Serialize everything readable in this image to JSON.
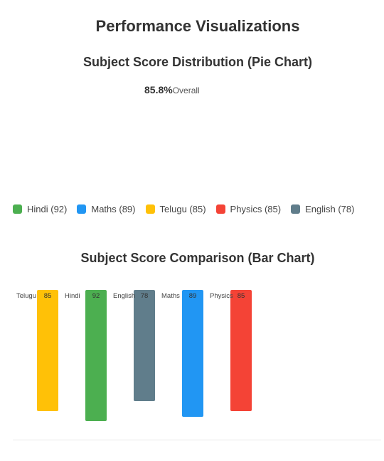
{
  "page": {
    "title": "Performance Visualizations"
  },
  "pie": {
    "title": "Subject Score Distribution (Pie Chart)",
    "overall_value": "85.8%",
    "overall_label": "Overall",
    "legend": [
      {
        "label": "Hindi (92)",
        "color": "#4CAF50"
      },
      {
        "label": "Maths (89)",
        "color": "#2196F3"
      },
      {
        "label": "Telugu (85)",
        "color": "#FFC107"
      },
      {
        "label": "Physics (85)",
        "color": "#F44336"
      },
      {
        "label": "English (78)",
        "color": "#607D8B"
      }
    ]
  },
  "bar": {
    "title": "Subject Score Comparison (Bar Chart)"
  },
  "chart_data": [
    {
      "type": "pie",
      "title": "Subject Score Distribution (Pie Chart)",
      "center_label": "85.8%",
      "center_sublabel": "Overall",
      "categories": [
        "Hindi",
        "Maths",
        "Telugu",
        "Physics",
        "English"
      ],
      "values": [
        92,
        89,
        85,
        85,
        78
      ],
      "colors": [
        "#4CAF50",
        "#2196F3",
        "#FFC107",
        "#F44336",
        "#607D8B"
      ],
      "legend_position": "bottom"
    },
    {
      "type": "bar",
      "title": "Subject Score Comparison (Bar Chart)",
      "categories": [
        "Telugu",
        "Hindi",
        "English",
        "Maths",
        "Physics"
      ],
      "values": [
        85,
        92,
        78,
        89,
        85
      ],
      "colors": [
        "#FFC107",
        "#4CAF50",
        "#607D8B",
        "#2196F3",
        "#F44336"
      ],
      "xlabel": "",
      "ylabel": "",
      "grid": false
    }
  ]
}
